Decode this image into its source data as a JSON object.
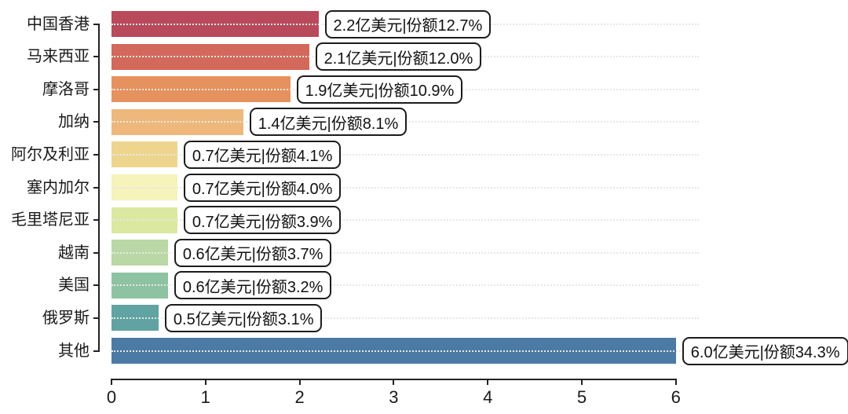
{
  "chart_data": {
    "type": "bar",
    "orientation": "horizontal",
    "title": "",
    "xlabel": "",
    "ylabel": "",
    "unit": "亿美元",
    "xlim": [
      0,
      6
    ],
    "x_ticks": [
      "0",
      "1",
      "2",
      "3",
      "4",
      "5",
      "6"
    ],
    "grid": "dotted-horizontal",
    "categories": [
      "中国香港",
      "马来西亚",
      "摩洛哥",
      "加纳",
      "阿尔及利亚",
      "塞内加尔",
      "毛里塔尼亚",
      "越南",
      "美国",
      "俄罗斯",
      "其他"
    ],
    "values": [
      2.2,
      2.1,
      1.9,
      1.4,
      0.7,
      0.7,
      0.7,
      0.6,
      0.6,
      0.5,
      6.0
    ],
    "shares_pct": [
      12.7,
      12.0,
      10.9,
      8.1,
      4.1,
      4.0,
      3.9,
      3.7,
      3.2,
      3.1,
      34.3
    ],
    "labels": [
      "2.2亿美元|份额12.7%",
      "2.1亿美元|份额12.0%",
      "1.9亿美元|份额10.9%",
      "1.4亿美元|份额8.1%",
      "0.7亿美元|份额4.1%",
      "0.7亿美元|份额4.0%",
      "0.7亿美元|份额3.9%",
      "0.6亿美元|份额3.7%",
      "0.6亿美元|份额3.2%",
      "0.5亿美元|份额3.1%",
      "6.0亿美元|份额34.3%"
    ],
    "bar_colors": [
      "#b84a5c",
      "#d2695a",
      "#e6925f",
      "#eeb87c",
      "#eed58e",
      "#f6f3bb",
      "#dbe8a0",
      "#bad8a5",
      "#8dc3a1",
      "#60a3a2",
      "#4b7aa5"
    ],
    "axis_color": "#222222",
    "grid_color": "#e7e7e7",
    "label_box_border_color": "#1c1c1c",
    "background_color": "#ffffff"
  }
}
